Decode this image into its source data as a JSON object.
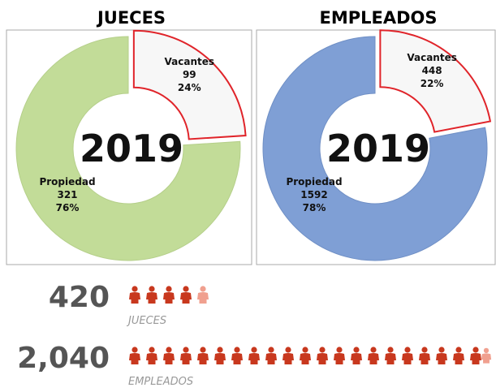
{
  "chart_data": [
    {
      "type": "pie",
      "title": "JUECES",
      "center_label": "2019",
      "categories": [
        "Vacantes",
        "Propiedad"
      ],
      "counts": [
        99,
        321
      ],
      "values": [
        24,
        76
      ],
      "value_labels": [
        "24%",
        "76%"
      ],
      "colors": [
        "#f7f7f7",
        "#c2dc98"
      ],
      "stroke_colors": [
        "#e0242a",
        "#b5cf8a"
      ]
    },
    {
      "type": "pie",
      "title": "EMPLEADOS",
      "center_label": "2019",
      "categories": [
        "Vacantes",
        "Propiedad"
      ],
      "counts": [
        448,
        1592
      ],
      "values": [
        22,
        78
      ],
      "value_labels": [
        "22%",
        "78%"
      ],
      "colors": [
        "#f7f7f7",
        "#7f9fd5"
      ],
      "stroke_colors": [
        "#e0242a",
        "#6f8fc5"
      ]
    }
  ],
  "summary": [
    {
      "value": "420",
      "label": "JUECES"
    },
    {
      "value": "2,040",
      "label": "EMPLEADOS"
    }
  ]
}
